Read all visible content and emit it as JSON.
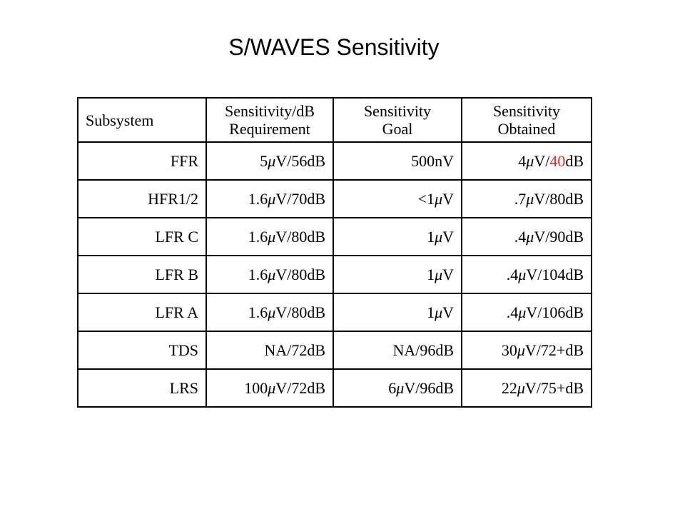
{
  "slide": {
    "title": "S/WAVES Sensitivity"
  },
  "table": {
    "headers": [
      {
        "line1": "Subsystem",
        "line2": ""
      },
      {
        "line1": "Sensitivity/dB",
        "line2": "Requirement"
      },
      {
        "line1": "Sensitivity",
        "line2": "Goal"
      },
      {
        "line1": "Sensitivity",
        "line2": "Obtained"
      }
    ],
    "rows": [
      {
        "subsystem": "FFR",
        "requirement": "5μV/56dB",
        "goal": "500nV",
        "obtained_parts": [
          "4μV/",
          "40",
          "dB"
        ]
      },
      {
        "subsystem": "HFR1/2",
        "requirement": "1.6μV/70dB",
        "goal": "<1μV",
        "obtained": ".7μV/80dB"
      },
      {
        "subsystem": "LFR C",
        "requirement": "1.6μV/80dB",
        "goal": "1μV",
        "obtained": ".4μV/90dB"
      },
      {
        "subsystem": "LFR B",
        "requirement": "1.6μV/80dB",
        "goal": "1μV",
        "obtained": ".4μV/104dB"
      },
      {
        "subsystem": "LFR A",
        "requirement": "1.6μV/80dB",
        "goal": "1μV",
        "obtained": ".4μV/106dB"
      },
      {
        "subsystem": "TDS",
        "requirement": "NA/72dB",
        "goal": "NA/96dB",
        "obtained": "30μV/72+dB"
      },
      {
        "subsystem": "LRS",
        "requirement": "100μV/72dB",
        "goal": "6μV/96dB",
        "obtained": "22μV/75+dB"
      }
    ],
    "highlight_color": "#e5281f"
  }
}
